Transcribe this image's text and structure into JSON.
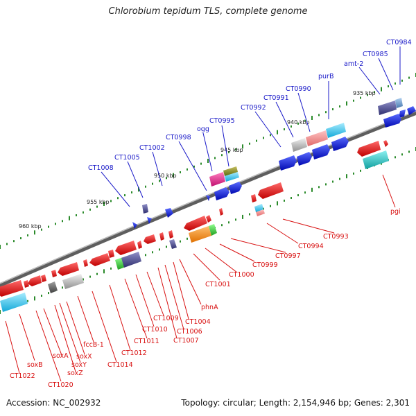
{
  "title": "Chlorobium tepidum TLS, complete genome",
  "accession": "Accession: NC_002932",
  "topology": "Topology: circular; Length: 2,154,946 bp; Genes: 2,301",
  "colors": {
    "forward_label": "#1818c8",
    "reverse_label": "#d81010",
    "forward_gene": "#0a14e6",
    "reverse_gene": "#ee1414",
    "backbone": "#6a6a6a",
    "tick": "#2a8a2a"
  },
  "scale_labels": [
    "935 kbp",
    "940 kbp",
    "945 kbp",
    "950 kbp",
    "955 kbp",
    "960 kbp"
  ],
  "forward_genes": [
    "CT0984",
    "CT0985",
    "amt-2",
    "purB",
    "CT0990",
    "CT0991",
    "CT0992",
    "CT0995",
    "ogg",
    "CT0998",
    "CT1002",
    "CT1005",
    "CT1008"
  ],
  "reverse_genes": [
    "pgi",
    "CT0993",
    "CT0994",
    "CT0997",
    "CT0999",
    "CT1000",
    "CT1001",
    "phnA",
    "CT1004",
    "CT1006",
    "CT1007",
    "CT1009",
    "CT1010",
    "CT1011",
    "CT1012",
    "CT1014",
    "fccB-1",
    "soxX",
    "soxY",
    "soxZ",
    "soxA",
    "CT1020",
    "soxB",
    "CT1022"
  ]
}
